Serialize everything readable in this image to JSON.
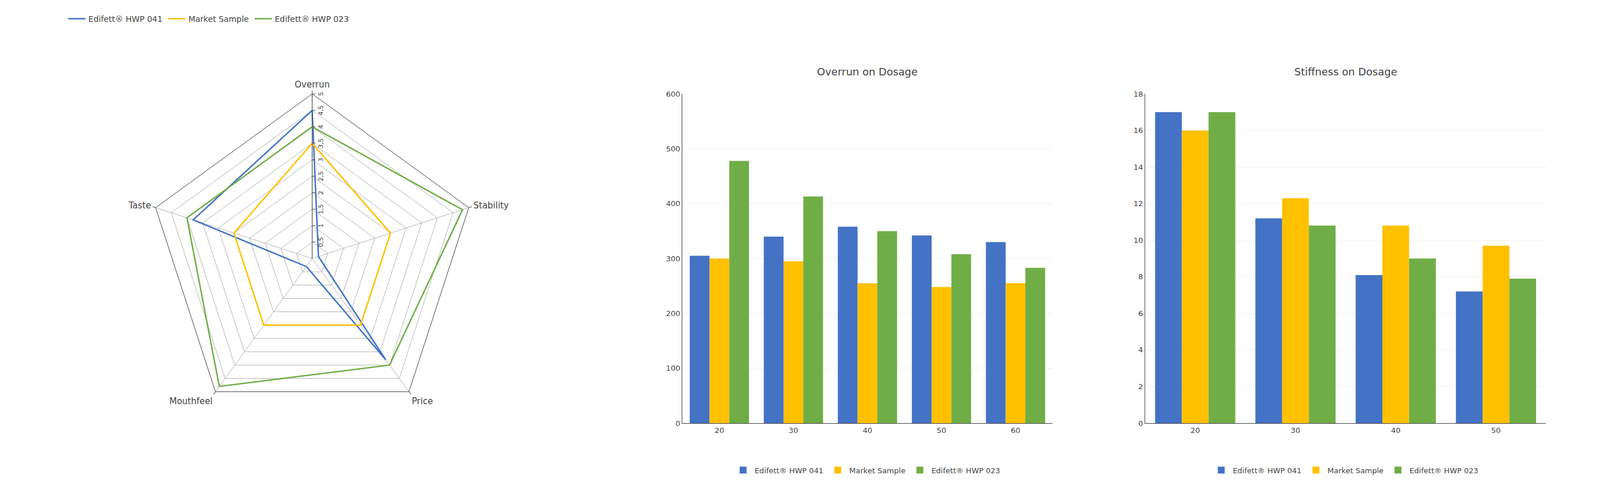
{
  "chart_data": [
    {
      "type": "radar",
      "categories": [
        "Overrun",
        "Stability",
        "Price",
        "Mouthfeel",
        "Taste"
      ],
      "series": [
        {
          "name": "Edifett® HWP 041",
          "color": "#4472c4",
          "values": [
            4.5,
            0.2,
            3.8,
            0.3,
            3.8
          ]
        },
        {
          "name": "Market Sample",
          "color": "#ffc000",
          "values": [
            3.5,
            2.5,
            2.5,
            2.5,
            2.5
          ]
        },
        {
          "name": "Edifett® HWP 023",
          "color": "#70ad47",
          "values": [
            4.0,
            4.8,
            4.0,
            4.8,
            4.0
          ]
        }
      ],
      "ylim": [
        0,
        5
      ],
      "yticks": [
        {
          "value": 0.5,
          "label": "0,5"
        },
        1,
        {
          "value": 1.5,
          "label": "1,5"
        },
        2,
        {
          "value": 2.5,
          "label": "2,5"
        },
        3,
        {
          "value": 3.5,
          "label": "3,5"
        },
        4,
        {
          "value": 4.5,
          "label": "4,5"
        },
        5
      ],
      "grid": true,
      "legend": "top"
    },
    {
      "type": "bar",
      "title": "Overrun on Dosage",
      "categories": [
        20,
        30,
        40,
        50,
        60
      ],
      "series": [
        {
          "name": "Edifett® HWP 041",
          "color": "#4472c4",
          "values": [
            305,
            340,
            358,
            342,
            330
          ]
        },
        {
          "name": "Market Sample",
          "color": "#ffc000",
          "values": [
            300,
            295,
            255,
            248,
            255
          ]
        },
        {
          "name": "Edifett® HWP 023",
          "color": "#70ad47",
          "values": [
            478,
            413,
            350,
            308,
            283
          ]
        }
      ],
      "ylim": [
        0,
        600
      ],
      "yticks": [
        0,
        100,
        200,
        300,
        400,
        500,
        600
      ],
      "grid": true,
      "legend": "bottom"
    },
    {
      "type": "bar",
      "title": "Stiffness on Dosage",
      "categories": [
        20,
        30,
        40,
        50
      ],
      "series": [
        {
          "name": "Edifett® HWP 041",
          "color": "#4472c4",
          "values": [
            17.0,
            11.2,
            8.1,
            7.2
          ]
        },
        {
          "name": "Market Sample",
          "color": "#ffc000",
          "values": [
            16.0,
            12.3,
            10.8,
            9.7
          ]
        },
        {
          "name": "Edifett® HWP 023",
          "color": "#70ad47",
          "values": [
            17.0,
            10.8,
            9.0,
            7.9
          ]
        }
      ],
      "ylim": [
        0,
        18
      ],
      "yticks": [
        0,
        2,
        4,
        6,
        8,
        10,
        12,
        14,
        16,
        18
      ],
      "grid": true,
      "legend": "bottom"
    }
  ]
}
